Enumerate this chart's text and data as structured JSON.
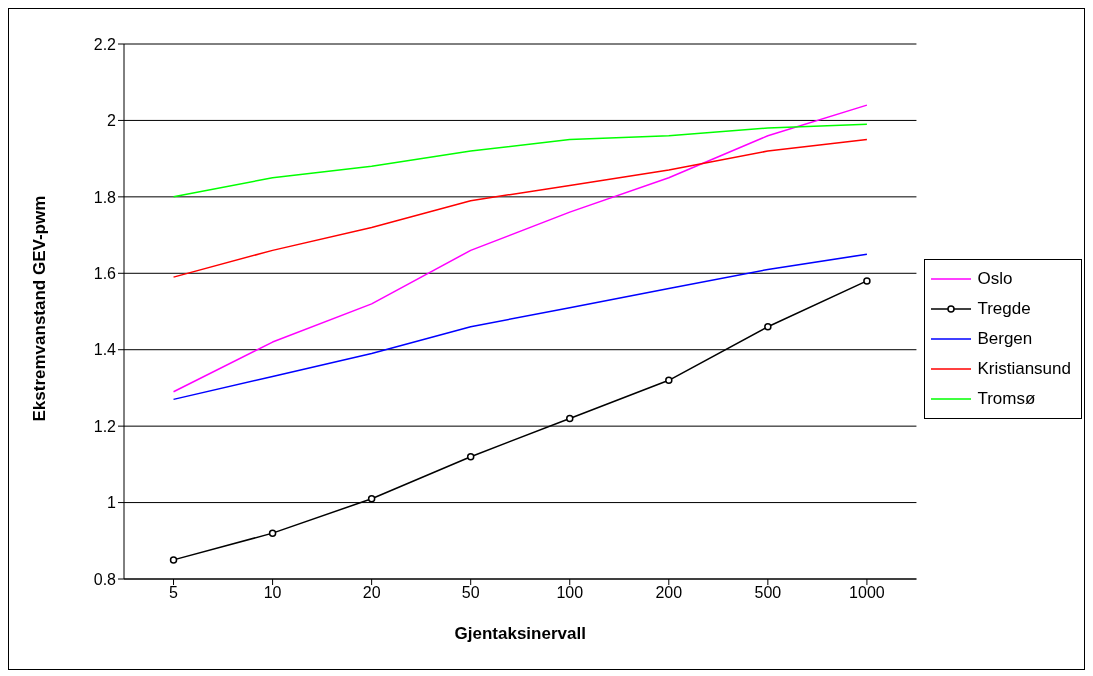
{
  "chart_data": {
    "type": "line",
    "xlabel": "Gjentaksinervall",
    "ylabel": "Ekstremvanstand GEV-pwm",
    "categories": [
      "5",
      "10",
      "20",
      "50",
      "100",
      "200",
      "500",
      "1000"
    ],
    "series": [
      {
        "name": "Oslo",
        "color": "#ff00ff",
        "marker": "none",
        "values": [
          1.29,
          1.42,
          1.52,
          1.66,
          1.76,
          1.85,
          1.96,
          2.04
        ]
      },
      {
        "name": "Tregde",
        "color": "#000000",
        "marker": "circle",
        "values": [
          0.85,
          0.92,
          1.01,
          1.12,
          1.22,
          1.32,
          1.46,
          1.58
        ]
      },
      {
        "name": "Bergen",
        "color": "#0000ff",
        "marker": "none",
        "values": [
          1.27,
          1.33,
          1.39,
          1.46,
          1.51,
          1.56,
          1.61,
          1.65
        ]
      },
      {
        "name": "Kristiansund",
        "color": "#ff0000",
        "marker": "none",
        "values": [
          1.59,
          1.66,
          1.72,
          1.79,
          1.83,
          1.87,
          1.92,
          1.95
        ]
      },
      {
        "name": "Tromsø",
        "color": "#00ff00",
        "marker": "none",
        "values": [
          1.8,
          1.85,
          1.88,
          1.92,
          1.95,
          1.96,
          1.98,
          1.99
        ]
      }
    ],
    "ylim": [
      0.8,
      2.2
    ],
    "yticks": [
      0.8,
      1,
      1.2,
      1.4,
      1.6,
      1.8,
      2,
      2.2
    ],
    "grid": "y",
    "legend": "right"
  }
}
